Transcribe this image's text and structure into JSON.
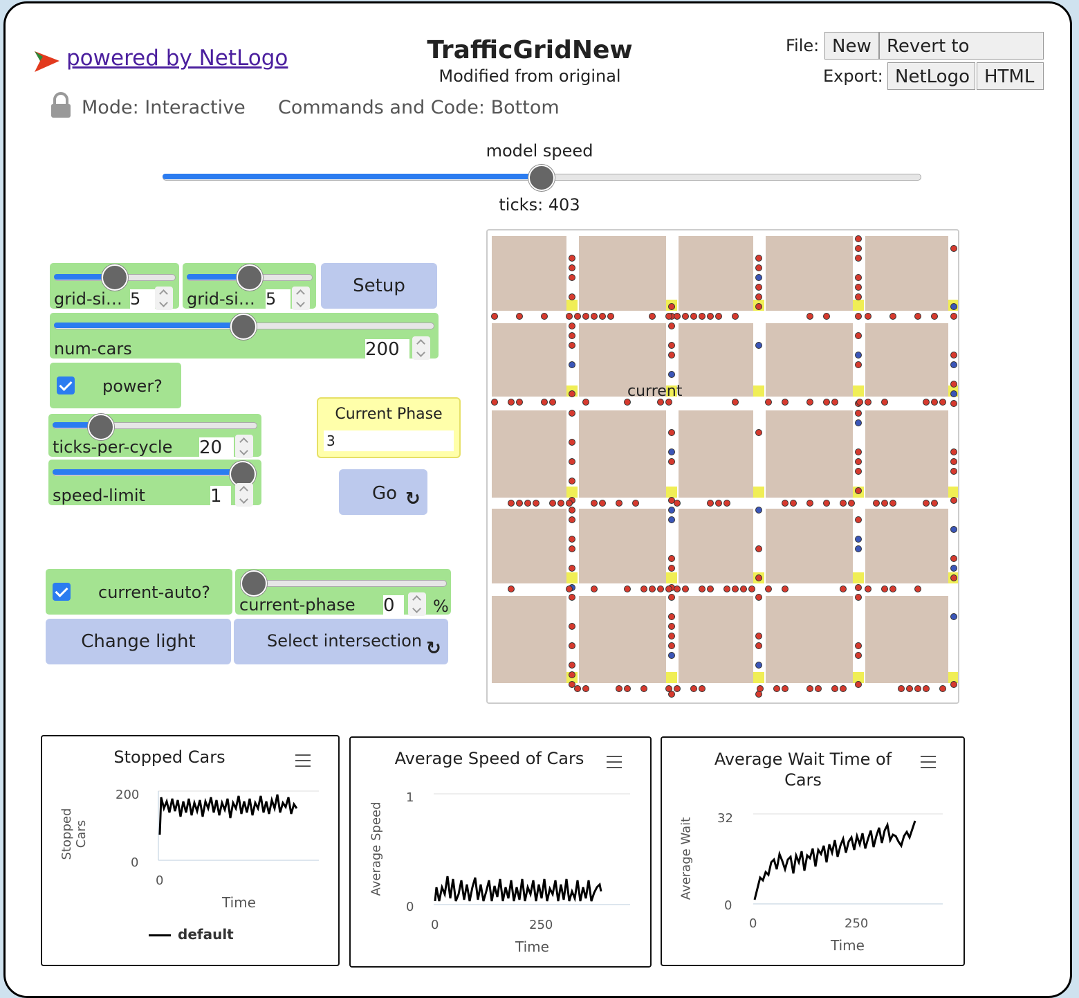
{
  "header": {
    "logo_link": "powered by NetLogo",
    "title": "TrafficGridNew",
    "subtitle": "Modified from original",
    "file_label": "File:",
    "new_btn": "New",
    "revert_btn": "Revert to Original",
    "export_label": "Export:",
    "export_netlogo": "NetLogo",
    "export_html": "HTML",
    "mode": "Mode: Interactive",
    "commands": "Commands and Code: Bottom"
  },
  "speed": {
    "label": "model speed",
    "ticks": "ticks: 403",
    "value": 0.5
  },
  "widgets": {
    "grid_x": {
      "label": "grid-si…",
      "value": "5"
    },
    "grid_y": {
      "label": "grid-si…",
      "value": "5"
    },
    "setup": "Setup",
    "num_cars": {
      "label": "num-cars",
      "value": "200"
    },
    "power": "power?",
    "current_phase_monitor": {
      "label": "Current Phase",
      "value": "3"
    },
    "ticks_per_cycle": {
      "label": "ticks-per-cycle",
      "value": "20"
    },
    "speed_limit": {
      "label": "speed-limit",
      "value": "1"
    },
    "go": "Go",
    "current_auto": "current-auto?",
    "current_phase": {
      "label": "current-phase",
      "value": "0",
      "unit": "%"
    },
    "change_light": "Change light",
    "select_intersection": "Select intersection"
  },
  "world": {
    "label": "current"
  },
  "plots": [
    {
      "title": "Stopped Cars",
      "ylabel": "Stopped Cars",
      "xlabel": "Time",
      "ymax": "200",
      "ymin": "0",
      "x0": "0",
      "legend": "default"
    },
    {
      "title": "Average Speed of Cars",
      "ylabel": "Average Speed",
      "xlabel": "Time",
      "ymax": "1",
      "ymin": "0",
      "x0": "0",
      "x1": "250"
    },
    {
      "title": "Average Wait Time of Cars",
      "ylabel": "Average Wait",
      "xlabel": "Time",
      "ymax": "32",
      "ymin": "0",
      "x0": "0",
      "x1": "250"
    }
  ],
  "colors": {
    "patch": "#d6c4b6",
    "road": "#ffffff",
    "light": "#f0ee55",
    "car_red": "#d63a2e",
    "car_blue": "#3b56b8"
  }
}
